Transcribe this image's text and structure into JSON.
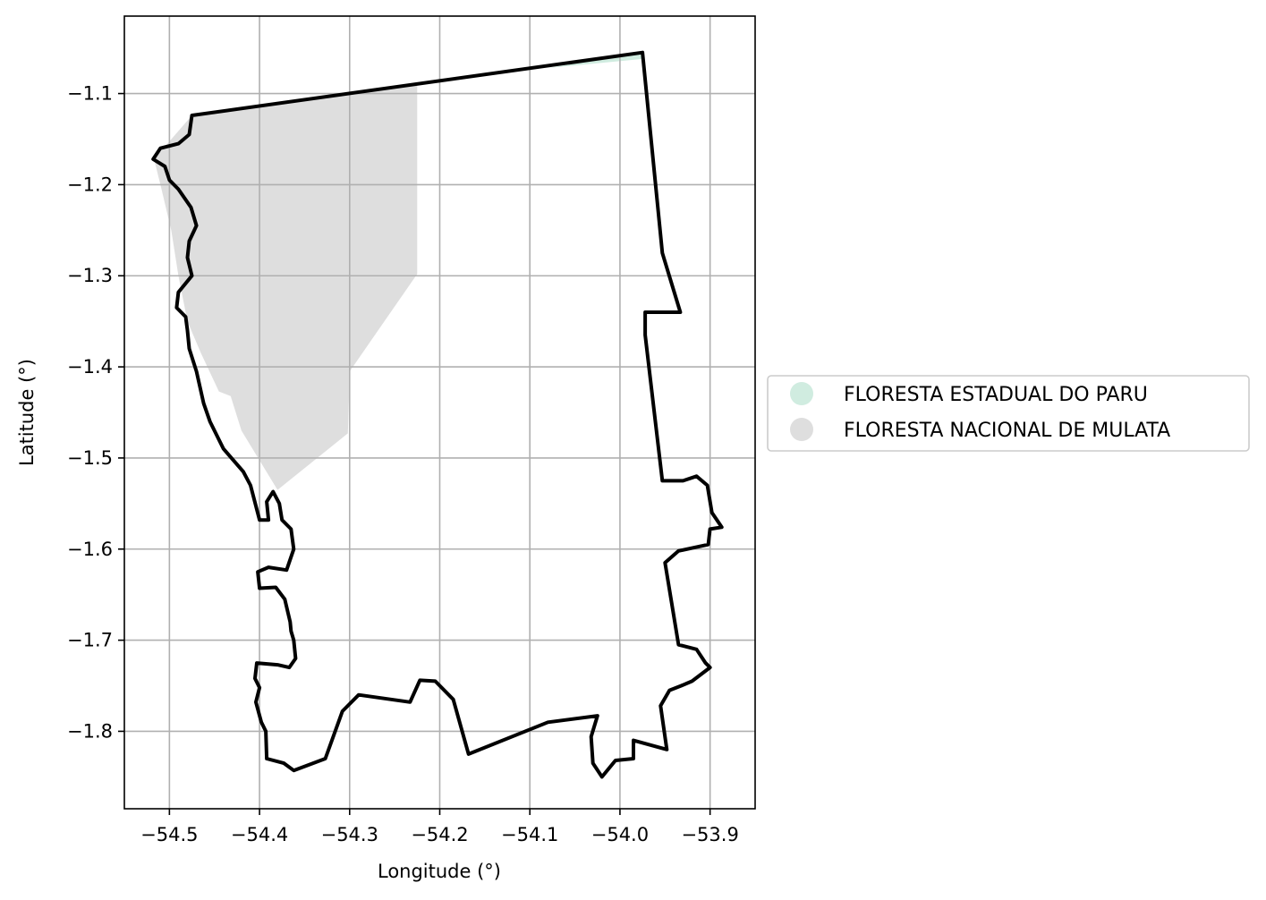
{
  "chart_data": {
    "type": "map",
    "xlabel": "Longitude (°)",
    "ylabel": "Latitude (°)",
    "xlim": [
      -54.55,
      -53.85
    ],
    "ylim": [
      -1.885,
      -1.015
    ],
    "grid": true,
    "legend_placement": "center-right outside",
    "x_ticks": [
      {
        "value": -54.5,
        "label": "−54.5"
      },
      {
        "value": -54.4,
        "label": "−54.4"
      },
      {
        "value": -54.3,
        "label": "−54.3"
      },
      {
        "value": -54.2,
        "label": "−54.2"
      },
      {
        "value": -54.1,
        "label": "−54.1"
      },
      {
        "value": -54.0,
        "label": "−54.0"
      },
      {
        "value": -53.9,
        "label": "−53.9"
      }
    ],
    "y_ticks": [
      {
        "value": -1.1,
        "label": "−1.1"
      },
      {
        "value": -1.2,
        "label": "−1.2"
      },
      {
        "value": -1.3,
        "label": "−1.3"
      },
      {
        "value": -1.4,
        "label": "−1.4"
      },
      {
        "value": -1.5,
        "label": "−1.5"
      },
      {
        "value": -1.6,
        "label": "−1.6"
      },
      {
        "value": -1.7,
        "label": "−1.7"
      },
      {
        "value": -1.8,
        "label": "−1.8"
      }
    ],
    "legend": [
      {
        "label": "FLORESTA ESTADUAL DO PARU",
        "color": "#d0ece0"
      },
      {
        "label": "FLORESTA NACIONAL DE MULATA",
        "color": "#dedede"
      }
    ],
    "areas": [
      {
        "name": "FLORESTA ESTADUAL DO PARU",
        "color": "#d0ece0",
        "polygon": [
          [
            -54.08,
            -1.072
          ],
          [
            -53.975,
            -1.055
          ],
          [
            -53.975,
            -1.062
          ]
        ]
      },
      {
        "name": "FLORESTA NACIONAL DE MULATA",
        "color": "#dedede",
        "polygon": [
          [
            -54.475,
            -1.124
          ],
          [
            -54.225,
            -1.09
          ],
          [
            -54.225,
            -1.298
          ],
          [
            -54.3,
            -1.405
          ],
          [
            -54.302,
            -1.473
          ],
          [
            -54.38,
            -1.535
          ],
          [
            -54.42,
            -1.47
          ],
          [
            -54.432,
            -1.432
          ],
          [
            -54.445,
            -1.427
          ],
          [
            -54.465,
            -1.385
          ],
          [
            -54.48,
            -1.35
          ],
          [
            -54.49,
            -1.3
          ],
          [
            -54.498,
            -1.25
          ],
          [
            -54.51,
            -1.2
          ],
          [
            -54.517,
            -1.172
          ],
          [
            -54.475,
            -1.124
          ]
        ]
      }
    ],
    "boundary": {
      "color": "#000000",
      "polygon": [
        [
          -54.475,
          -1.124
        ],
        [
          -53.975,
          -1.055
        ],
        [
          -53.953,
          -1.275
        ],
        [
          -53.933,
          -1.34
        ],
        [
          -53.972,
          -1.34
        ],
        [
          -53.972,
          -1.365
        ],
        [
          -53.953,
          -1.525
        ],
        [
          -53.93,
          -1.525
        ],
        [
          -53.915,
          -1.52
        ],
        [
          -53.903,
          -1.53
        ],
        [
          -53.898,
          -1.56
        ],
        [
          -53.887,
          -1.576
        ],
        [
          -53.9,
          -1.578
        ],
        [
          -53.902,
          -1.595
        ],
        [
          -53.935,
          -1.602
        ],
        [
          -53.95,
          -1.615
        ],
        [
          -53.935,
          -1.705
        ],
        [
          -53.915,
          -1.71
        ],
        [
          -53.905,
          -1.725
        ],
        [
          -53.9,
          -1.73
        ],
        [
          -53.92,
          -1.745
        ],
        [
          -53.932,
          -1.75
        ],
        [
          -53.945,
          -1.755
        ],
        [
          -53.955,
          -1.772
        ],
        [
          -53.948,
          -1.82
        ],
        [
          -53.985,
          -1.81
        ],
        [
          -53.985,
          -1.83
        ],
        [
          -54.005,
          -1.832
        ],
        [
          -54.02,
          -1.85
        ],
        [
          -54.03,
          -1.835
        ],
        [
          -54.032,
          -1.806
        ],
        [
          -54.025,
          -1.783
        ],
        [
          -54.08,
          -1.79
        ],
        [
          -54.168,
          -1.825
        ],
        [
          -54.185,
          -1.765
        ],
        [
          -54.205,
          -1.745
        ],
        [
          -54.222,
          -1.744
        ],
        [
          -54.233,
          -1.768
        ],
        [
          -54.29,
          -1.76
        ],
        [
          -54.308,
          -1.778
        ],
        [
          -54.327,
          -1.83
        ],
        [
          -54.362,
          -1.843
        ],
        [
          -54.373,
          -1.835
        ],
        [
          -54.392,
          -1.83
        ],
        [
          -54.393,
          -1.8
        ],
        [
          -54.398,
          -1.79
        ],
        [
          -54.404,
          -1.768
        ],
        [
          -54.4,
          -1.752
        ],
        [
          -54.405,
          -1.742
        ],
        [
          -54.403,
          -1.725
        ],
        [
          -54.38,
          -1.727
        ],
        [
          -54.367,
          -1.73
        ],
        [
          -54.36,
          -1.72
        ],
        [
          -54.362,
          -1.7
        ],
        [
          -54.365,
          -1.69
        ],
        [
          -54.366,
          -1.68
        ],
        [
          -54.372,
          -1.655
        ],
        [
          -54.382,
          -1.642
        ],
        [
          -54.4,
          -1.643
        ],
        [
          -54.402,
          -1.625
        ],
        [
          -54.39,
          -1.62
        ],
        [
          -54.37,
          -1.623
        ],
        [
          -54.362,
          -1.6
        ],
        [
          -54.365,
          -1.578
        ],
        [
          -54.375,
          -1.568
        ],
        [
          -54.378,
          -1.55
        ],
        [
          -54.385,
          -1.537
        ],
        [
          -54.392,
          -1.548
        ],
        [
          -54.39,
          -1.568
        ],
        [
          -54.4,
          -1.568
        ],
        [
          -54.41,
          -1.53
        ],
        [
          -54.418,
          -1.515
        ],
        [
          -54.44,
          -1.49
        ],
        [
          -54.455,
          -1.46
        ],
        [
          -54.462,
          -1.44
        ],
        [
          -54.47,
          -1.405
        ],
        [
          -54.478,
          -1.38
        ],
        [
          -54.48,
          -1.36
        ],
        [
          -54.482,
          -1.345
        ],
        [
          -54.492,
          -1.335
        ],
        [
          -54.49,
          -1.318
        ],
        [
          -54.475,
          -1.3
        ],
        [
          -54.48,
          -1.28
        ],
        [
          -54.478,
          -1.262
        ],
        [
          -54.47,
          -1.245
        ],
        [
          -54.476,
          -1.225
        ],
        [
          -54.49,
          -1.205
        ],
        [
          -54.5,
          -1.195
        ],
        [
          -54.505,
          -1.18
        ],
        [
          -54.518,
          -1.172
        ],
        [
          -54.51,
          -1.16
        ],
        [
          -54.49,
          -1.155
        ],
        [
          -54.478,
          -1.145
        ],
        [
          -54.475,
          -1.124
        ]
      ]
    }
  }
}
